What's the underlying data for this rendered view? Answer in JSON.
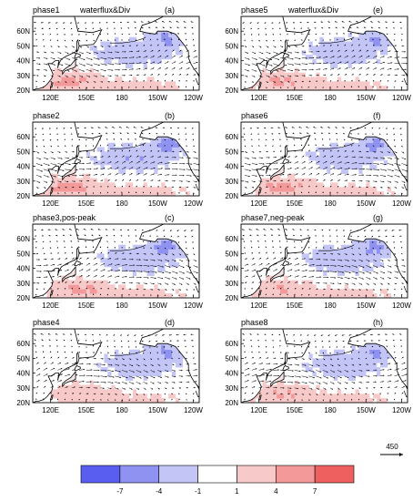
{
  "panels": [
    {
      "title": "phase1",
      "subtitle": "waterflux&Div",
      "letter": "(a)"
    },
    {
      "title": "phase5",
      "subtitle": "waterflux&Div",
      "letter": "(e)"
    },
    {
      "title": "phase2",
      "subtitle": "",
      "letter": "(b)"
    },
    {
      "title": "phase6",
      "subtitle": "",
      "letter": "(f)"
    },
    {
      "title": "phase3,pos-peak",
      "subtitle": "",
      "letter": "(c)"
    },
    {
      "title": "phase7,neg-peak",
      "subtitle": "",
      "letter": "(g)"
    },
    {
      "title": "phase4",
      "subtitle": "",
      "letter": "(d)"
    },
    {
      "title": "phase8",
      "subtitle": "",
      "letter": "(h)"
    }
  ],
  "axes": {
    "lat_labels": [
      "60N",
      "50N",
      "40N",
      "30N",
      "20N"
    ],
    "lon_labels": [
      "120E",
      "150E",
      "180",
      "150W",
      "120W"
    ]
  },
  "reference_vector": {
    "value": "450"
  },
  "colorbar": {
    "labels": [
      "-7",
      "-4",
      "-1",
      "1",
      "4",
      "7"
    ],
    "colors": [
      "#5a5ef0",
      "#8f92f1",
      "#c3c5f7",
      "#ffffff",
      "#f7c9c9",
      "#f39999",
      "#ee6060"
    ]
  }
}
